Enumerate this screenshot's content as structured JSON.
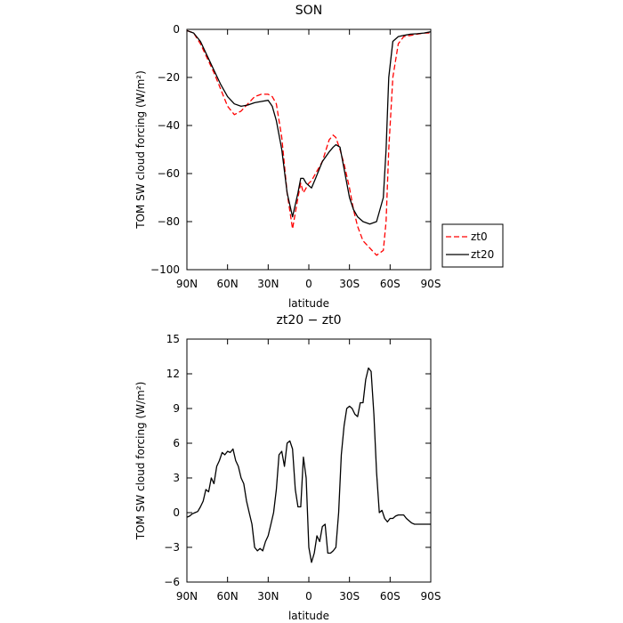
{
  "chart_data": [
    {
      "type": "line",
      "title": "SON",
      "xlabel": "latitude",
      "ylabel": "TOM SW cloud forcing (W/m²)",
      "xlim": [
        90,
        -90
      ],
      "ylim": [
        -100,
        0
      ],
      "x_ticks": [
        90,
        60,
        30,
        0,
        -30,
        -60,
        -90
      ],
      "x_tick_labels": [
        "90N",
        "60N",
        "30N",
        "0",
        "30S",
        "60S",
        "90S"
      ],
      "y_ticks": [
        0,
        -20,
        -40,
        -60,
        -80,
        -100
      ],
      "y_tick_labels": [
        "0",
        "−20",
        "−40",
        "−60",
        "−80",
        "−100"
      ],
      "legend": "right",
      "series": [
        {
          "name": "zt0",
          "color": "#ff0000",
          "dash": "dashed",
          "x": [
            90,
            85,
            80,
            75,
            70,
            65,
            60,
            55,
            50,
            45,
            40,
            35,
            30,
            27,
            24,
            20,
            16,
            12,
            8,
            6,
            4,
            2,
            0,
            -2,
            -5,
            -10,
            -15,
            -18,
            -20,
            -23,
            -26,
            -30,
            -33,
            -36,
            -40,
            -45,
            -50,
            -55,
            -57,
            -59,
            -62,
            -66,
            -70,
            -75,
            -80,
            -85,
            -90
          ],
          "y": [
            -0.5,
            -1.5,
            -6,
            -12,
            -18,
            -25,
            -32,
            -35.5,
            -34,
            -31,
            -28,
            -27,
            -27,
            -28,
            -31,
            -45,
            -68,
            -83,
            -70,
            -64,
            -68,
            -66,
            -64,
            -63,
            -60,
            -55,
            -46,
            -44,
            -45,
            -50,
            -56,
            -66,
            -75,
            -82,
            -88,
            -91,
            -94,
            -92,
            -80,
            -50,
            -20,
            -6,
            -3,
            -2.5,
            -2,
            -1.5,
            -1.5
          ]
        },
        {
          "name": "zt20",
          "color": "#000000",
          "dash": "solid",
          "x": [
            90,
            85,
            80,
            75,
            70,
            65,
            60,
            55,
            50,
            45,
            40,
            35,
            30,
            27,
            24,
            20,
            16,
            12,
            8,
            6,
            4,
            2,
            0,
            -2,
            -5,
            -10,
            -15,
            -18,
            -20,
            -23,
            -26,
            -30,
            -33,
            -36,
            -40,
            -45,
            -50,
            -55,
            -57,
            -59,
            -62,
            -66,
            -70,
            -75,
            -80,
            -85,
            -90
          ],
          "y": [
            -0.5,
            -1.5,
            -5,
            -11,
            -17,
            -23,
            -28,
            -31,
            -32,
            -31.5,
            -30.5,
            -30,
            -29.5,
            -32,
            -38,
            -50,
            -68,
            -78,
            -68,
            -62,
            -62,
            -64,
            -65,
            -66,
            -62,
            -55,
            -51,
            -49,
            -48,
            -49,
            -58,
            -70,
            -75,
            -78,
            -80,
            -81,
            -80,
            -70,
            -50,
            -20,
            -5,
            -3,
            -2.5,
            -2,
            -1.8,
            -1.5,
            -1
          ]
        }
      ]
    },
    {
      "type": "line",
      "title": "zt20 − zt0",
      "xlabel": "latitude",
      "ylabel": "TOM SW cloud forcing (W/m²)",
      "xlim": [
        90,
        -90
      ],
      "ylim": [
        -6,
        15
      ],
      "x_ticks": [
        90,
        60,
        30,
        0,
        -30,
        -60,
        -90
      ],
      "x_tick_labels": [
        "90N",
        "60N",
        "30N",
        "0",
        "30S",
        "60S",
        "90S"
      ],
      "y_ticks": [
        15,
        12,
        9,
        6,
        3,
        0,
        -3,
        -6
      ],
      "y_tick_labels": [
        "15",
        "12",
        "9",
        "6",
        "3",
        "0",
        "−3",
        "−6"
      ],
      "series": [
        {
          "name": "",
          "color": "#000000",
          "dash": "solid",
          "x": [
            90,
            88,
            86,
            84,
            82,
            80,
            78,
            76,
            74,
            72,
            70,
            68,
            66,
            64,
            62,
            60,
            58,
            56,
            54,
            52,
            50,
            48,
            46,
            44,
            42,
            40,
            38,
            36,
            34,
            32,
            30,
            28,
            26,
            24,
            22,
            20,
            18,
            16,
            14,
            12,
            10,
            8,
            6,
            4,
            2,
            0,
            -2,
            -4,
            -6,
            -8,
            -10,
            -12,
            -14,
            -16,
            -18,
            -20,
            -22,
            -24,
            -26,
            -28,
            -30,
            -32,
            -34,
            -36,
            -38,
            -40,
            -42,
            -44,
            -46,
            -48,
            -50,
            -52,
            -54,
            -56,
            -58,
            -60,
            -62,
            -64,
            -66,
            -68,
            -70,
            -72,
            -74,
            -76,
            -78,
            -80,
            -82,
            -84,
            -86,
            -88,
            -90
          ],
          "y": [
            -0.4,
            -0.3,
            -0.1,
            0,
            0.1,
            0.5,
            1,
            2,
            1.8,
            3,
            2.5,
            4,
            4.5,
            5.2,
            5.0,
            5.3,
            5.2,
            5.5,
            4.5,
            4,
            3,
            2.5,
            1,
            0,
            -1,
            -3,
            -3.3,
            -3.1,
            -3.3,
            -2.5,
            -2,
            -1,
            0,
            2,
            5,
            5.3,
            4,
            6,
            6.2,
            5.5,
            2,
            0.5,
            0.5,
            4.8,
            3,
            -3,
            -4.3,
            -3.5,
            -2,
            -2.5,
            -1.2,
            -1,
            -3.5,
            -3.5,
            -3.3,
            -3,
            0,
            5,
            7.5,
            9,
            9.2,
            9,
            8.5,
            8.3,
            9.5,
            9.5,
            11.5,
            12.5,
            12.2,
            8.5,
            3.5,
            0,
            0.2,
            -0.5,
            -0.8,
            -0.5,
            -0.5,
            -0.3,
            -0.2,
            -0.2,
            -0.2,
            -0.5,
            -0.7,
            -0.9,
            -1.0,
            -1.0,
            -1.0,
            -1.0,
            -1.0,
            -1.0,
            -1.0
          ]
        }
      ]
    }
  ]
}
